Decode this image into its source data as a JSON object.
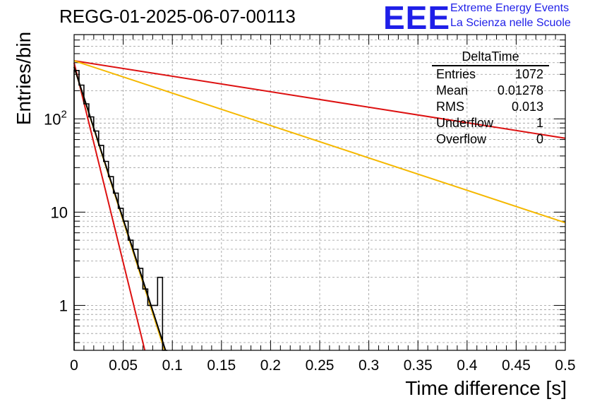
{
  "header": {
    "title": "REGG-01-2025-06-07-00113",
    "logo_text": "EEE",
    "org_line1": "Extreme Energy Events",
    "org_line2": "La Scienza nelle Scuole"
  },
  "stats_box": {
    "name": "DeltaTime",
    "rows": [
      {
        "label": "Entries",
        "value": "1072"
      },
      {
        "label": "Mean",
        "value": "0.01278"
      },
      {
        "label": "RMS",
        "value": "0.013"
      },
      {
        "label": "Underflow",
        "value": "1"
      },
      {
        "label": "Overflow",
        "value": "0"
      }
    ]
  },
  "colors": {
    "histogram": "#000000",
    "red_fit": "#dd1111",
    "yellow_fit": "#f5b800",
    "black_fit": "#000000",
    "grid": "#999999"
  },
  "chart_data": {
    "type": "line",
    "title": "REGG-01-2025-06-07-00113",
    "xlabel": "Time difference [s]",
    "ylabel": "Entries/bin",
    "xlim": [
      0,
      0.5
    ],
    "ylim": [
      0.33,
      800
    ],
    "yscale": "log",
    "grid": true,
    "x_ticks": [
      0,
      0.05,
      0.1,
      0.15,
      0.2,
      0.25,
      0.3,
      0.35,
      0.4,
      0.45,
      0.5
    ],
    "x_tick_labels": [
      "0",
      "0.05",
      "0.1",
      "0.15",
      "0.2",
      "0.25",
      "0.3",
      "0.35",
      "0.4",
      "0.45",
      "0.5"
    ],
    "y_ticks": [
      1,
      10,
      100
    ],
    "y_tick_labels": [
      "1",
      "10",
      "10²"
    ],
    "histogram": {
      "name": "DeltaTime",
      "bin_width": 0.005,
      "bin_edges_start": 0,
      "counts": [
        330,
        230,
        145,
        105,
        74,
        52,
        35,
        24,
        16,
        11,
        8,
        5,
        4,
        2.5,
        1.5,
        1,
        1,
        2,
        0.33
      ]
    },
    "series": [
      {
        "name": "red-steep-fit",
        "color": "#dd1111",
        "x": [
          0.0,
          0.072
        ],
        "y": [
          400,
          0.33
        ]
      },
      {
        "name": "red-slow-fit",
        "color": "#dd1111",
        "x": [
          0.0,
          0.5
        ],
        "y": [
          420,
          62
        ]
      },
      {
        "name": "yellow-fast-fit",
        "color": "#f5b800",
        "x": [
          0.0,
          0.092
        ],
        "y": [
          360,
          0.33
        ]
      },
      {
        "name": "yellow-slow-fit",
        "color": "#f5b800",
        "x": [
          0.0,
          0.5
        ],
        "y": [
          420,
          7.7
        ]
      },
      {
        "name": "black-fit",
        "color": "#000000",
        "x": [
          0.0,
          0.093
        ],
        "y": [
          360,
          0.33
        ]
      }
    ]
  }
}
